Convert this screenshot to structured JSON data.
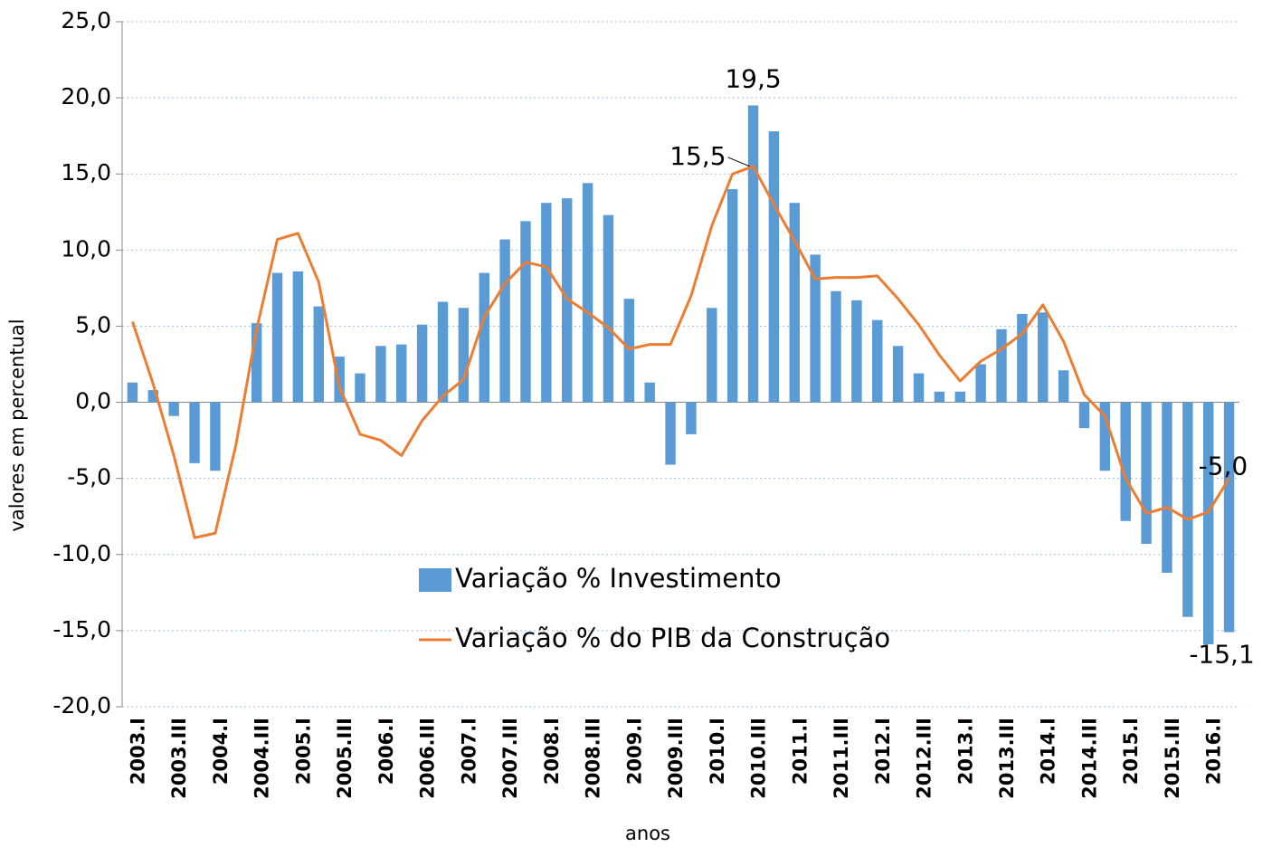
{
  "chart_data": {
    "type": "bar-line",
    "y_axis_label": "valores em percentual",
    "x_axis_label": "anos",
    "categories": [
      "2003.I",
      null,
      "2003.III",
      null,
      "2004.I",
      null,
      "2004.III",
      null,
      "2005.I",
      null,
      "2005.III",
      null,
      "2006.I",
      null,
      "2006.III",
      null,
      "2007.I",
      null,
      "2007.III",
      null,
      "2008.I",
      null,
      "2008.III",
      null,
      "2009.I",
      null,
      "2009.III",
      null,
      "2010.I",
      null,
      "2010.III",
      null,
      "2011.I",
      null,
      "2011.III",
      null,
      "2012.I",
      null,
      "2012.III",
      null,
      "2013.I",
      null,
      "2013.III",
      null,
      "2014.I",
      null,
      "2014.III",
      null,
      "2015.I",
      null,
      "2015.III",
      null,
      "2016.I",
      null
    ],
    "series": [
      {
        "name": "Variação % Investimento",
        "kind": "bar",
        "color": "#5b9bd5",
        "values": [
          1.3,
          0.8,
          -0.9,
          -4.0,
          -4.5,
          0.0,
          5.2,
          8.5,
          8.6,
          6.3,
          3.0,
          1.9,
          3.7,
          3.8,
          5.1,
          6.6,
          6.2,
          8.5,
          10.7,
          11.9,
          13.1,
          13.4,
          14.4,
          12.3,
          6.8,
          1.3,
          -4.1,
          -2.1,
          6.2,
          14.0,
          19.5,
          17.8,
          13.1,
          9.7,
          7.3,
          6.7,
          5.4,
          3.7,
          1.9,
          0.7,
          0.7,
          2.5,
          4.8,
          5.8,
          5.9,
          2.1,
          -1.7,
          -4.5,
          -7.8,
          -9.3,
          -11.2,
          -14.1,
          -15.9,
          -15.1
        ],
        "value_labels": [
          null,
          null,
          null,
          null,
          null,
          null,
          null,
          null,
          null,
          null,
          null,
          null,
          null,
          null,
          null,
          null,
          null,
          null,
          null,
          null,
          null,
          null,
          null,
          null,
          null,
          null,
          null,
          null,
          null,
          null,
          "19,5",
          null,
          null,
          null,
          null,
          null,
          null,
          null,
          null,
          null,
          null,
          null,
          null,
          null,
          null,
          null,
          null,
          null,
          null,
          null,
          null,
          null,
          null,
          "-15,1"
        ]
      },
      {
        "name": "Variação % do PIB da Construção",
        "kind": "line",
        "color": "#ed7d31",
        "values": [
          5.3,
          1.2,
          -3.5,
          -8.9,
          -8.6,
          -2.8,
          4.8,
          10.7,
          11.1,
          7.9,
          1.0,
          -2.1,
          -2.5,
          -3.5,
          -1.2,
          0.4,
          1.5,
          5.6,
          7.8,
          9.2,
          8.9,
          6.8,
          5.9,
          4.9,
          3.5,
          3.8,
          3.8,
          7.0,
          11.6,
          15.0,
          15.5,
          13.0,
          10.6,
          8.1,
          8.2,
          8.2,
          8.3,
          6.8,
          5.1,
          3.1,
          1.4,
          2.7,
          3.5,
          4.5,
          6.4,
          4.0,
          0.5,
          -0.9,
          -5.0,
          -7.3,
          -6.9,
          -7.7,
          -7.2,
          -5.0
        ],
        "value_labels": [
          null,
          null,
          null,
          null,
          null,
          null,
          null,
          null,
          null,
          null,
          null,
          null,
          null,
          null,
          null,
          null,
          null,
          null,
          null,
          null,
          null,
          null,
          null,
          null,
          null,
          null,
          null,
          null,
          null,
          null,
          "15,5",
          null,
          null,
          null,
          null,
          null,
          null,
          null,
          null,
          null,
          null,
          null,
          null,
          null,
          null,
          null,
          null,
          null,
          null,
          null,
          null,
          null,
          null,
          "-5,0"
        ]
      }
    ],
    "ylim": [
      -20,
      25
    ],
    "yticks": [
      {
        "value": -20,
        "label": "-20,0"
      },
      {
        "value": -15,
        "label": "-15,0"
      },
      {
        "value": -10,
        "label": "-10,0"
      },
      {
        "value": -5,
        "label": "-5,0"
      },
      {
        "value": 0,
        "label": "0,0"
      },
      {
        "value": 5,
        "label": "5,0"
      },
      {
        "value": 10,
        "label": "10,0"
      },
      {
        "value": 15,
        "label": "15,0"
      },
      {
        "value": 20,
        "label": "20,0"
      },
      {
        "value": 25,
        "label": "25,0"
      }
    ],
    "grid": true
  }
}
